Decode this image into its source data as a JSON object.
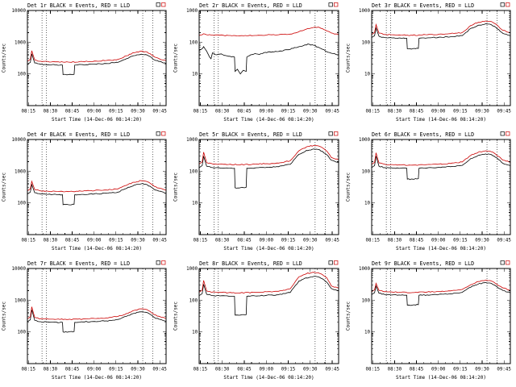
{
  "figure": {
    "background": "#ffffff",
    "axis_color": "#000000",
    "ylabel": "Counts/sec",
    "xlabel": "Start Time (14-Dec-06 08:14:20)",
    "xtick_labels": [
      "08:15",
      "08:30",
      "08:45",
      "09:00",
      "09:15",
      "09:30",
      "09:45"
    ],
    "xtick_minutes": [
      0.67,
      15.67,
      30.67,
      45.67,
      60.67,
      75.67,
      90.67
    ],
    "x_range_minutes": [
      0,
      95
    ],
    "eclipse_vlines_minutes": [
      10,
      13,
      79,
      86
    ],
    "series_colors": {
      "events": "#000000",
      "lld": "#cc0000"
    },
    "legend_note": "BLACK = Events, RED = LLD"
  },
  "chart_data": [
    {
      "type": "line",
      "title": "Det 1r BLACK = Events, RED = LLD",
      "ylim": [
        10,
        10000
      ],
      "yticks": [
        100,
        1000,
        10000
      ],
      "series": [
        {
          "name": "Events",
          "color": "#000000",
          "t": [
            0,
            2,
            3,
            5,
            9,
            14,
            20,
            24,
            24.4,
            28,
            32,
            32.4,
            38,
            46,
            54,
            62,
            68,
            73,
            78,
            81,
            84,
            87,
            90,
            95
          ],
          "counts": [
            200,
            230,
            430,
            220,
            200,
            196,
            192,
            190,
            95,
            95,
            97,
            190,
            196,
            204,
            212,
            230,
            302,
            378,
            420,
            407,
            353,
            277,
            248,
            210
          ]
        },
        {
          "name": "LLD",
          "color": "#cc0000",
          "t": [
            0,
            2,
            3,
            5,
            9,
            14,
            20,
            28,
            38,
            46,
            54,
            62,
            68,
            73,
            78,
            81,
            84,
            87,
            90,
            95
          ],
          "counts": [
            250,
            288,
            540,
            275,
            250,
            245,
            240,
            236,
            245,
            255,
            265,
            288,
            374,
            468,
            520,
            504,
            437,
            343,
            307,
            260
          ]
        }
      ]
    },
    {
      "type": "line",
      "title": "Det 2r BLACK = Events, RED = LLD",
      "ylim": [
        1,
        1000
      ],
      "yticks": [
        10,
        100,
        1000
      ],
      "series": [
        {
          "name": "Events",
          "color": "#000000",
          "t": [
            0,
            2,
            3,
            5,
            7,
            8,
            9,
            12,
            15,
            18,
            21,
            24,
            24.4,
            26,
            28,
            30,
            32,
            32.4,
            35,
            38,
            41,
            45,
            50,
            55,
            60,
            64,
            68,
            72,
            75,
            78,
            81,
            84,
            87,
            90,
            95
          ],
          "counts": [
            55,
            62,
            72,
            52,
            34,
            30,
            46,
            40,
            43,
            38,
            36,
            34,
            12,
            14,
            10,
            13,
            12,
            34,
            40,
            44,
            41,
            48,
            50,
            53,
            58,
            64,
            72,
            82,
            86,
            80,
            70,
            60,
            50,
            45,
            40
          ]
        },
        {
          "name": "LLD",
          "color": "#cc0000",
          "t": [
            0,
            2,
            3,
            5,
            9,
            14,
            20,
            28,
            38,
            46,
            54,
            62,
            68,
            73,
            78,
            81,
            84,
            87,
            90,
            95
          ],
          "counts": [
            165,
            172,
            185,
            172,
            168,
            166,
            163,
            160,
            163,
            168,
            172,
            180,
            215,
            258,
            292,
            300,
            268,
            225,
            195,
            172
          ]
        }
      ]
    },
    {
      "type": "line",
      "title": "Det 3r BLACK = Events, RED = LLD",
      "ylim": [
        1,
        1000
      ],
      "yticks": [
        10,
        100,
        1000
      ],
      "series": [
        {
          "name": "Events",
          "color": "#000000",
          "t": [
            0,
            2,
            3,
            5,
            9,
            14,
            20,
            24,
            24.4,
            28,
            32,
            32.4,
            38,
            46,
            54,
            62,
            68,
            73,
            78,
            81,
            84,
            87,
            90,
            95
          ],
          "counts": [
            140,
            161,
            280,
            154,
            140,
            137,
            134,
            133,
            62,
            62,
            64,
            133,
            137,
            143,
            148,
            161,
            274,
            342,
            380,
            369,
            319,
            251,
            189,
            160
          ]
        },
        {
          "name": "LLD",
          "color": "#cc0000",
          "t": [
            0,
            2,
            3,
            5,
            9,
            14,
            20,
            28,
            38,
            46,
            54,
            62,
            68,
            73,
            78,
            81,
            84,
            87,
            90,
            95
          ],
          "counts": [
            175,
            201,
            360,
            193,
            175,
            172,
            168,
            165,
            172,
            179,
            186,
            201,
            338,
            423,
            470,
            456,
            395,
            310,
            236,
            200
          ]
        }
      ]
    },
    {
      "type": "line",
      "title": "Det 4r BLACK = Events, RED = LLD",
      "ylim": [
        10,
        10000
      ],
      "yticks": [
        100,
        1000,
        10000
      ],
      "series": [
        {
          "name": "Events",
          "color": "#000000",
          "t": [
            0,
            2,
            3,
            5,
            9,
            14,
            20,
            24,
            24.4,
            28,
            32,
            32.4,
            38,
            46,
            54,
            62,
            68,
            73,
            78,
            81,
            84,
            87,
            90,
            95
          ],
          "counts": [
            190,
            219,
            380,
            209,
            190,
            186,
            182,
            181,
            88,
            88,
            91,
            181,
            186,
            194,
            201,
            219,
            288,
            360,
            400,
            388,
            336,
            264,
            236,
            200
          ]
        },
        {
          "name": "LLD",
          "color": "#cc0000",
          "t": [
            0,
            2,
            3,
            5,
            9,
            14,
            20,
            28,
            38,
            46,
            54,
            62,
            68,
            73,
            78,
            81,
            84,
            87,
            90,
            95
          ],
          "counts": [
            240,
            276,
            480,
            264,
            240,
            235,
            230,
            227,
            235,
            245,
            254,
            276,
            360,
            450,
            500,
            485,
            420,
            330,
            295,
            250
          ]
        }
      ]
    },
    {
      "type": "line",
      "title": "Det 5r BLACK = Events, RED = LLD",
      "ylim": [
        1,
        1000
      ],
      "yticks": [
        10,
        100,
        1000
      ],
      "series": [
        {
          "name": "Events",
          "color": "#000000",
          "t": [
            0,
            2,
            3,
            5,
            9,
            14,
            20,
            24,
            24.4,
            28,
            32,
            32.4,
            38,
            46,
            54,
            62,
            68,
            73,
            78,
            81,
            84,
            87,
            90,
            95
          ],
          "counts": [
            130,
            150,
            300,
            143,
            130,
            127,
            125,
            124,
            30,
            30,
            31,
            124,
            127,
            133,
            138,
            165,
            340,
            450,
            500,
            485,
            420,
            330,
            224,
            190
          ]
        },
        {
          "name": "LLD",
          "color": "#cc0000",
          "t": [
            0,
            2,
            3,
            5,
            9,
            14,
            20,
            28,
            38,
            46,
            54,
            62,
            68,
            73,
            78,
            81,
            84,
            87,
            90,
            95
          ],
          "counts": [
            170,
            196,
            400,
            187,
            170,
            167,
            163,
            160,
            167,
            173,
            180,
            215,
            440,
            585,
            650,
            630,
            546,
            429,
            271,
            230
          ]
        }
      ]
    },
    {
      "type": "line",
      "title": "Det 6r BLACK = Events, RED = LLD",
      "ylim": [
        1,
        1000
      ],
      "yticks": [
        10,
        100,
        1000
      ],
      "series": [
        {
          "name": "Events",
          "color": "#000000",
          "t": [
            0,
            2,
            3,
            5,
            9,
            14,
            20,
            24,
            24.4,
            28,
            32,
            32.4,
            38,
            46,
            54,
            62,
            68,
            73,
            78,
            81,
            84,
            87,
            90,
            95
          ],
          "counts": [
            130,
            150,
            300,
            143,
            130,
            127,
            125,
            124,
            56,
            56,
            58,
            124,
            127,
            133,
            138,
            153,
            252,
            315,
            350,
            340,
            294,
            231,
            177,
            150
          ]
        },
        {
          "name": "LLD",
          "color": "#cc0000",
          "t": [
            0,
            2,
            3,
            5,
            9,
            14,
            20,
            28,
            38,
            46,
            54,
            62,
            68,
            73,
            78,
            81,
            84,
            87,
            90,
            95
          ],
          "counts": [
            165,
            190,
            380,
            182,
            165,
            162,
            158,
            155,
            162,
            168,
            175,
            195,
            317,
            396,
            440,
            427,
            370,
            290,
            224,
            190
          ]
        }
      ]
    },
    {
      "type": "line",
      "title": "Det 7r BLACK = Events, RED = LLD",
      "ylim": [
        10,
        10000
      ],
      "yticks": [
        100,
        1000,
        10000
      ],
      "series": [
        {
          "name": "Events",
          "color": "#000000",
          "t": [
            0,
            2,
            3,
            5,
            9,
            14,
            20,
            24,
            24.4,
            28,
            32,
            32.4,
            38,
            46,
            54,
            62,
            68,
            73,
            78,
            81,
            84,
            87,
            90,
            95
          ],
          "counts": [
            210,
            242,
            500,
            231,
            210,
            206,
            202,
            200,
            100,
            100,
            103,
            200,
            206,
            214,
            223,
            248,
            310,
            387,
            430,
            417,
            361,
            284,
            254,
            215
          ]
        },
        {
          "name": "LLD",
          "color": "#cc0000",
          "t": [
            0,
            2,
            3,
            5,
            9,
            14,
            20,
            28,
            38,
            46,
            54,
            62,
            68,
            73,
            78,
            81,
            84,
            87,
            90,
            95
          ],
          "counts": [
            260,
            299,
            620,
            286,
            260,
            255,
            250,
            247,
            255,
            265,
            276,
            307,
            382,
            477,
            530,
            514,
            445,
            350,
            313,
            265
          ]
        }
      ]
    },
    {
      "type": "line",
      "title": "Det 8r BLACK = Events, RED = LLD",
      "ylim": [
        1,
        1000
      ],
      "yticks": [
        10,
        100,
        1000
      ],
      "series": [
        {
          "name": "Events",
          "color": "#000000",
          "t": [
            0,
            2,
            3,
            5,
            9,
            14,
            20,
            24,
            24.4,
            28,
            32,
            32.4,
            38,
            46,
            54,
            62,
            68,
            73,
            78,
            81,
            84,
            87,
            90,
            95
          ],
          "counts": [
            140,
            161,
            320,
            154,
            140,
            137,
            134,
            133,
            34,
            34,
            35,
            133,
            137,
            143,
            148,
            175,
            403,
            504,
            560,
            543,
            470,
            370,
            236,
            200
          ]
        },
        {
          "name": "LLD",
          "color": "#cc0000",
          "t": [
            0,
            2,
            3,
            5,
            9,
            14,
            20,
            28,
            38,
            46,
            54,
            62,
            68,
            73,
            78,
            81,
            84,
            87,
            90,
            95
          ],
          "counts": [
            180,
            207,
            420,
            198,
            180,
            176,
            173,
            170,
            176,
            184,
            191,
            230,
            547,
            684,
            760,
            737,
            638,
            502,
            283,
            240
          ]
        }
      ]
    },
    {
      "type": "line",
      "title": "Det 9r BLACK = Events, RED = LLD",
      "ylim": [
        1,
        1000
      ],
      "yticks": [
        10,
        100,
        1000
      ],
      "series": [
        {
          "name": "Events",
          "color": "#000000",
          "t": [
            0,
            2,
            3,
            5,
            9,
            14,
            20,
            24,
            24.4,
            28,
            32,
            32.4,
            38,
            46,
            54,
            62,
            68,
            73,
            78,
            81,
            84,
            87,
            90,
            95
          ],
          "counts": [
            150,
            173,
            280,
            165,
            150,
            147,
            144,
            143,
            70,
            70,
            72,
            143,
            147,
            153,
            159,
            177,
            259,
            324,
            360,
            349,
            302,
            238,
            201,
            170
          ]
        },
        {
          "name": "LLD",
          "color": "#cc0000",
          "t": [
            0,
            2,
            3,
            5,
            9,
            14,
            20,
            28,
            38,
            46,
            54,
            62,
            68,
            73,
            78,
            81,
            84,
            87,
            90,
            95
          ],
          "counts": [
            185,
            213,
            340,
            204,
            185,
            181,
            178,
            174,
            181,
            189,
            196,
            218,
            310,
            387,
            430,
            417,
            361,
            284,
            242,
            205
          ]
        }
      ]
    }
  ]
}
